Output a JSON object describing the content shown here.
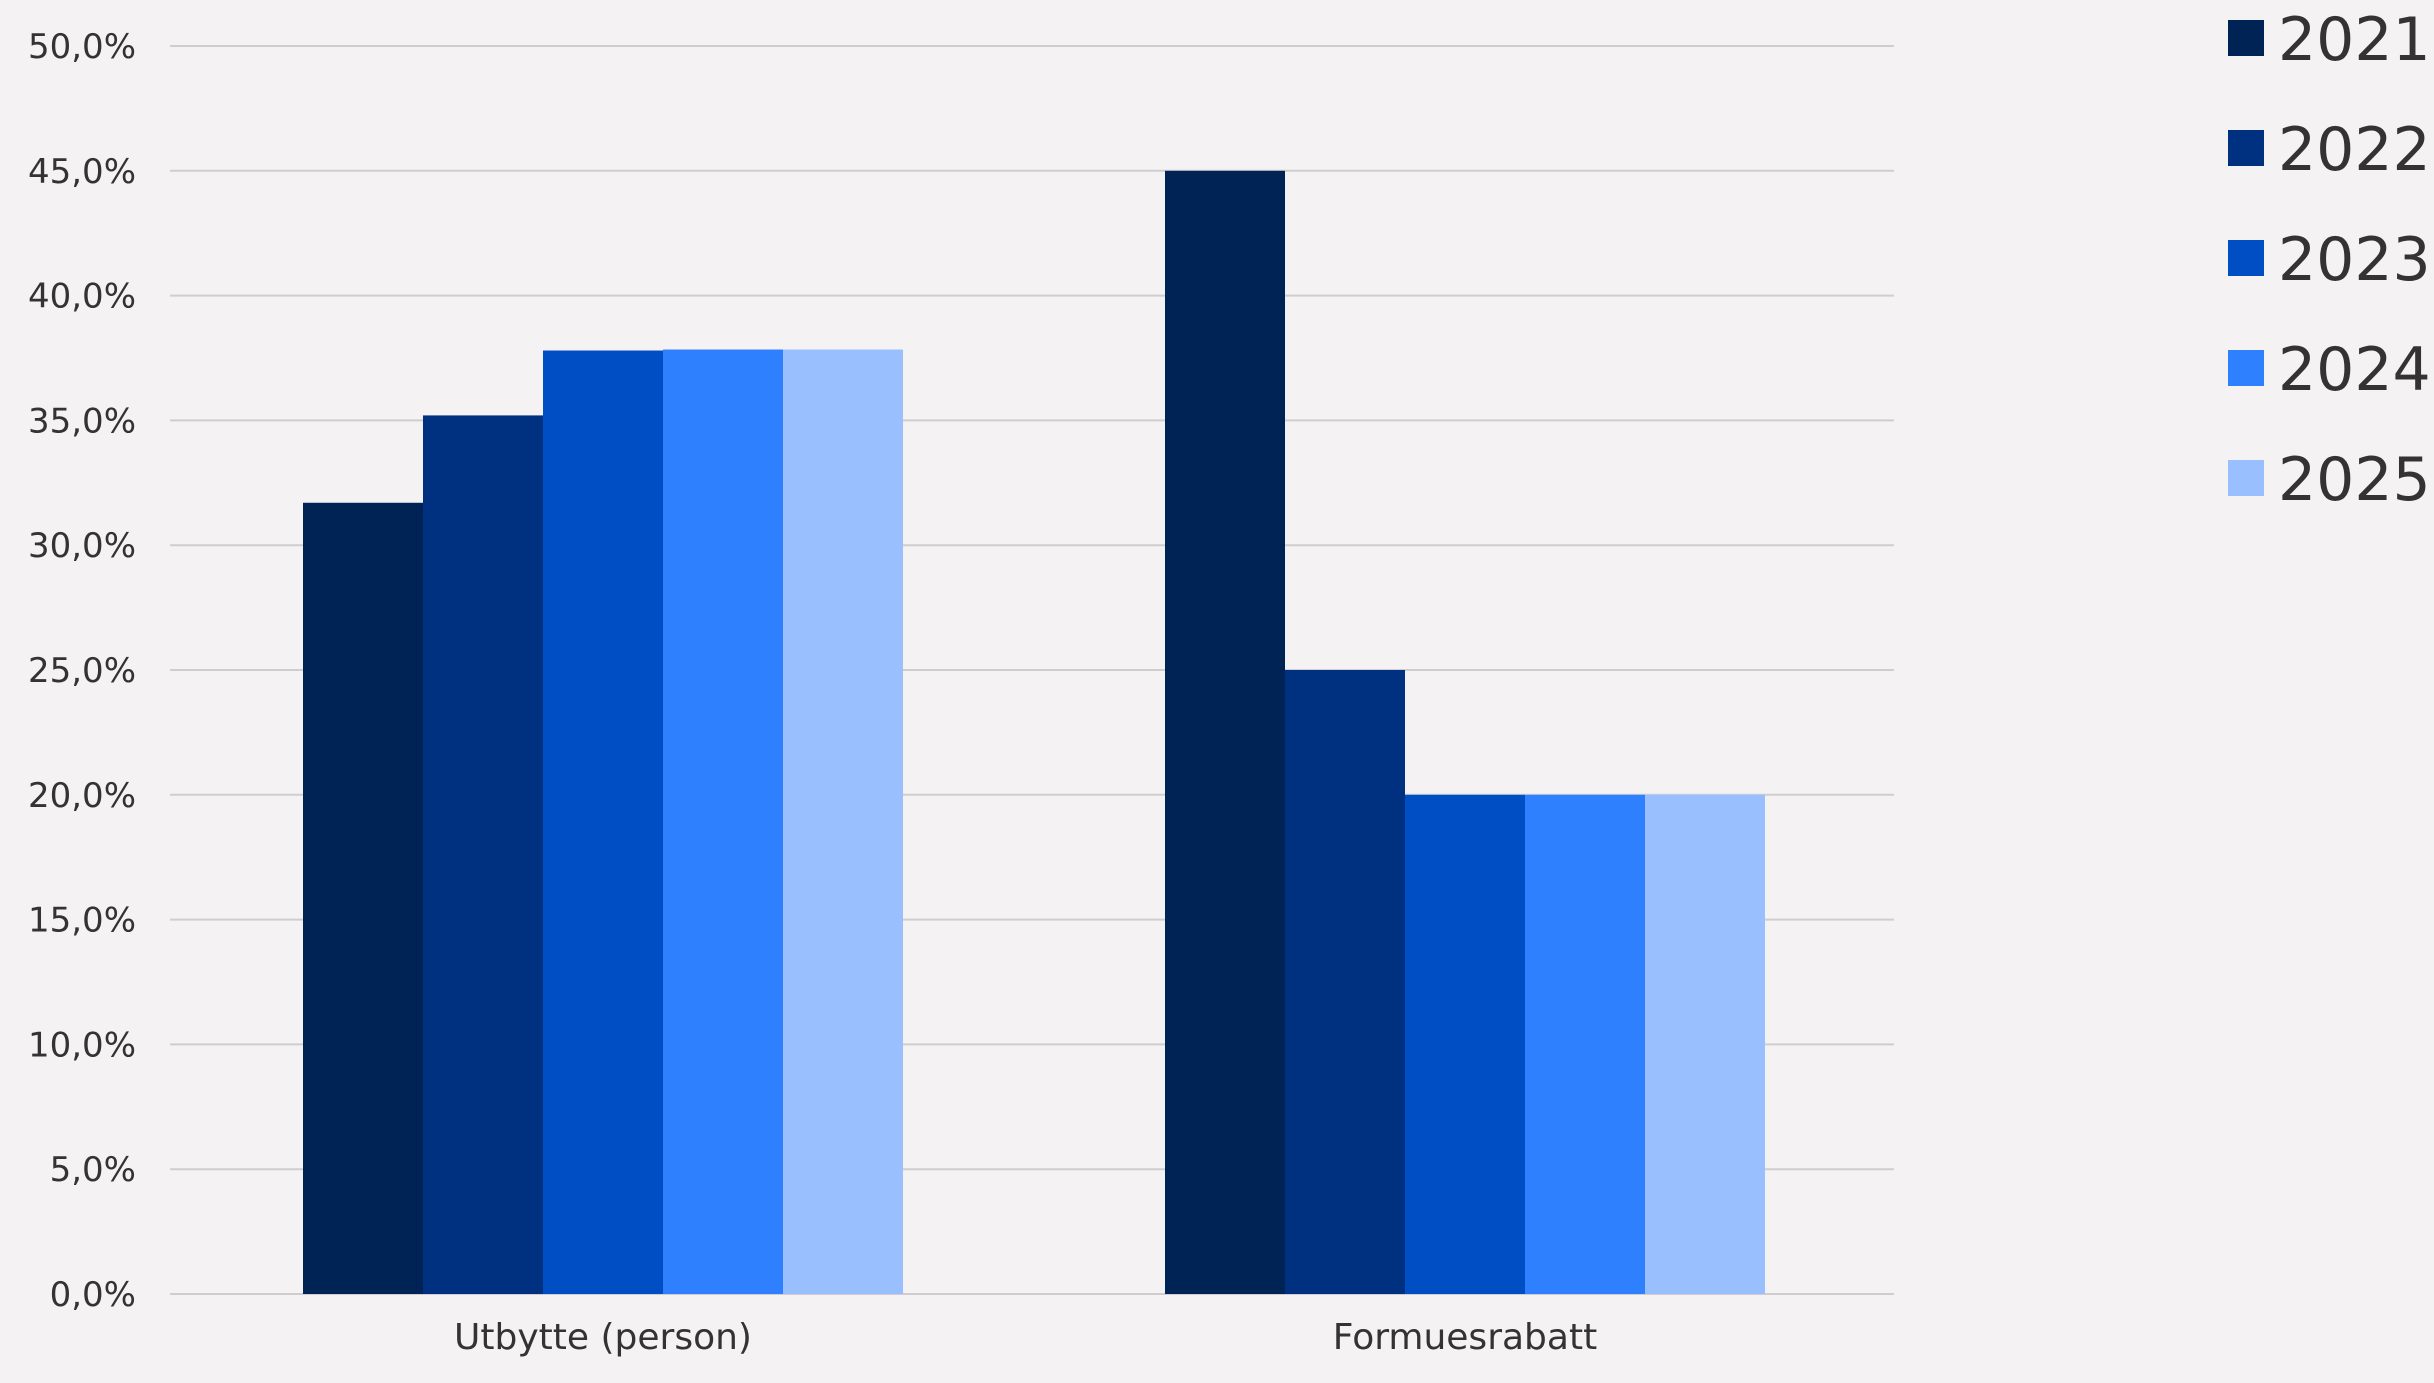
{
  "chart_data": {
    "type": "bar",
    "title": "",
    "xlabel": "",
    "ylabel": "",
    "categories": [
      "Utbytte (person)",
      "Formuesrabatt"
    ],
    "series": [
      {
        "name": "2021",
        "values": [
          31.7,
          45.0
        ]
      },
      {
        "name": "2022",
        "values": [
          35.2,
          25.0
        ]
      },
      {
        "name": "2023",
        "values": [
          37.8,
          20.0
        ]
      },
      {
        "name": "2024",
        "values": [
          37.84,
          20.0
        ]
      },
      {
        "name": "2025",
        "values": [
          37.84,
          20.0
        ]
      }
    ],
    "ylim": [
      0,
      50
    ],
    "yticks": [
      "0,0%",
      "5,0%",
      "10,0%",
      "15,0%",
      "20,0%",
      "25,0%",
      "30,0%",
      "35,0%",
      "40,0%",
      "45,0%",
      "50,0%"
    ],
    "grid": true,
    "legend_position": "top-right",
    "colors": [
      "#002355",
      "#003080",
      "#004ec4",
      "#2f80ff",
      "#99bfff"
    ],
    "background": "#f4f2f3",
    "gridline_color": "#cfcdd0"
  }
}
